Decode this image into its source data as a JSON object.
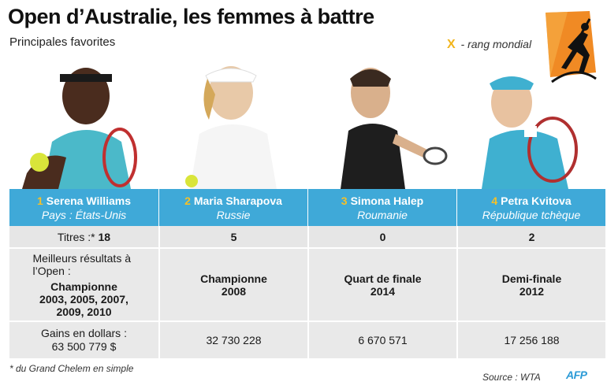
{
  "header": {
    "title": "Open d’Australie, les femmes à battre",
    "subtitle": "Principales favorites"
  },
  "legend": {
    "symbol": "X",
    "text": " - rang mondial",
    "symbol_color": "#f2b51c"
  },
  "players": [
    {
      "rank": "1",
      "name": "Serena Williams",
      "country": "Pays : États-Unis",
      "titles": "18",
      "best_result": "Championne",
      "best_years": "2003, 2005, 2007, 2009, 2010",
      "prize_money": "63 500 779 $"
    },
    {
      "rank": "2",
      "name": "Maria Sharapova",
      "country": "Russie",
      "titles": "5",
      "best_result": "Championne",
      "best_years": "2008",
      "prize_money": "32 730 228"
    },
    {
      "rank": "3",
      "name": "Simona Halep",
      "country": "Roumanie",
      "titles": "0",
      "best_result": "Quart de finale",
      "best_years": "2014",
      "prize_money": "6 670 571"
    },
    {
      "rank": "4",
      "name": "Petra Kvitova",
      "country": "République tchèque",
      "titles": "2",
      "best_result": "Demi-finale",
      "best_years": "2012",
      "prize_money": "17 256 188"
    }
  ],
  "labels": {
    "titles": "Titres :*",
    "best": "Meilleurs résultats à l’Open :",
    "money": "Gains en dollars :"
  },
  "footer": {
    "footnote": "* du Grand Chelem en simple",
    "source": "Source : WTA",
    "agency": "AFP"
  },
  "colors": {
    "header_row": "#3fa9d8",
    "rank": "#f5c028",
    "table_bg": "#e9e9e9",
    "logo": "#f08a24"
  }
}
